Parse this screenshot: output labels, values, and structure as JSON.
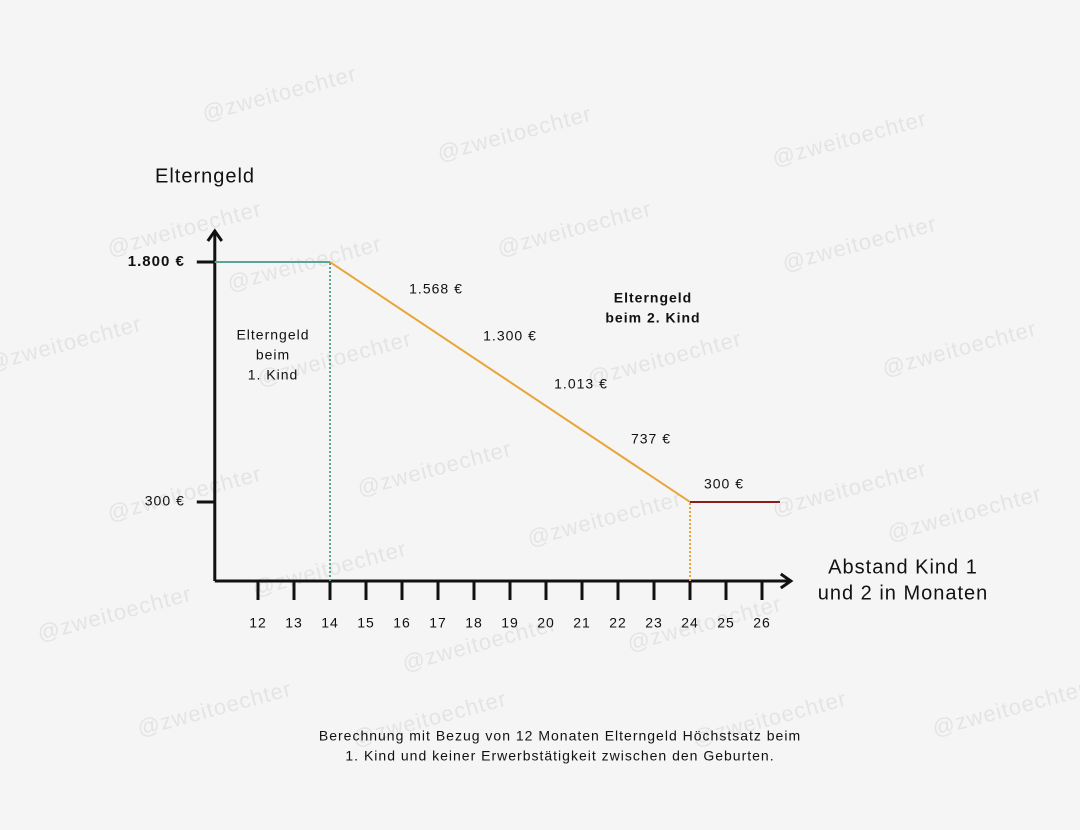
{
  "chart_data": {
    "type": "line",
    "ylabel": "Elterngeld",
    "xlabel": [
      "Abstand Kind 1",
      "und 2 in Monaten"
    ],
    "xlim": [
      10.8,
      26.8
    ],
    "ylim": [
      -194,
      1994
    ],
    "xticks": [
      12,
      13,
      14,
      15,
      16,
      17,
      18,
      19,
      20,
      21,
      22,
      23,
      24,
      25,
      26
    ],
    "yticks": [
      {
        "value": 1800,
        "label": "1.800 €"
      },
      {
        "value": 300,
        "label": "300 €"
      }
    ],
    "series": [
      {
        "color": "#5aa596",
        "x": [
          10.8,
          14
        ],
        "values": [
          1800,
          1800
        ]
      },
      {
        "color": "#e8a53a",
        "x": [
          14,
          24
        ],
        "values": [
          1800,
          300
        ]
      },
      {
        "color": "#8e1b1b",
        "x": [
          24,
          26.5
        ],
        "values": [
          300,
          300
        ]
      }
    ],
    "annotations": [
      [
        "1.568 €"
      ],
      [
        "1.300 €"
      ],
      [
        "1.013 €"
      ],
      [
        "737 €"
      ],
      [
        "300 €"
      ],
      [
        "Elterngeld",
        "beim",
        "1. Kind"
      ],
      [
        "Elterngeld",
        "beim 2. Kind"
      ]
    ],
    "footnote": [
      "Berechnung mit Bezug von 12 Monaten Elterngeld Höchstsatz beim",
      "1. Kind und keiner Erwerbstätigkeit zwischen den Geburten."
    ],
    "watermark": "@zweitoechter"
  }
}
